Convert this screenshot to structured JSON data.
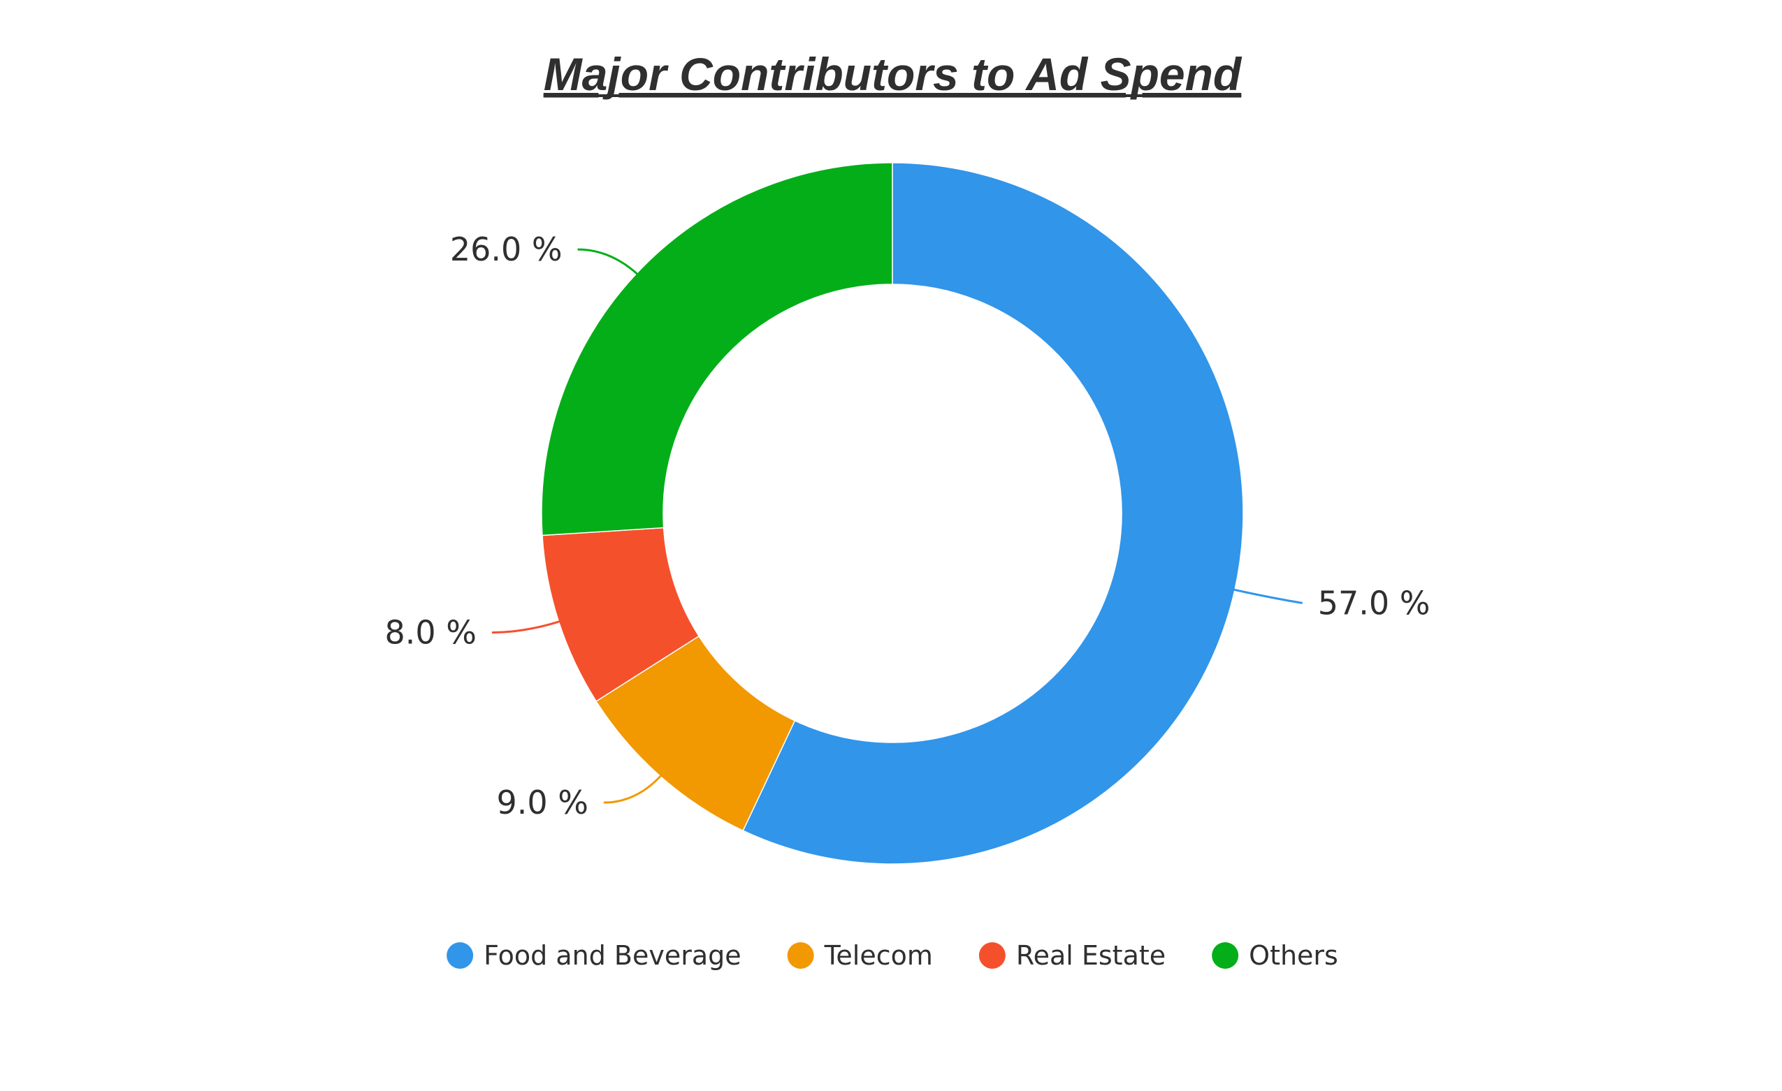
{
  "chart_data": {
    "type": "pie",
    "title": "Major Contributors to Ad Spend",
    "slices": [
      {
        "label": "Food and Beverage",
        "value": 57.0,
        "display": "57.0 %",
        "color": "#3195ea"
      },
      {
        "label": "Telecom",
        "value": 9.0,
        "display": "9.0 %",
        "color": "#f29800"
      },
      {
        "label": "Real Estate",
        "value": 8.0,
        "display": "8.0 %",
        "color": "#f5502c"
      },
      {
        "label": "Others",
        "value": 26.0,
        "display": "26.0 %",
        "color": "#04ae18"
      }
    ],
    "donut": true,
    "legend_position": "bottom",
    "start": "top",
    "direction": "clockwise"
  }
}
